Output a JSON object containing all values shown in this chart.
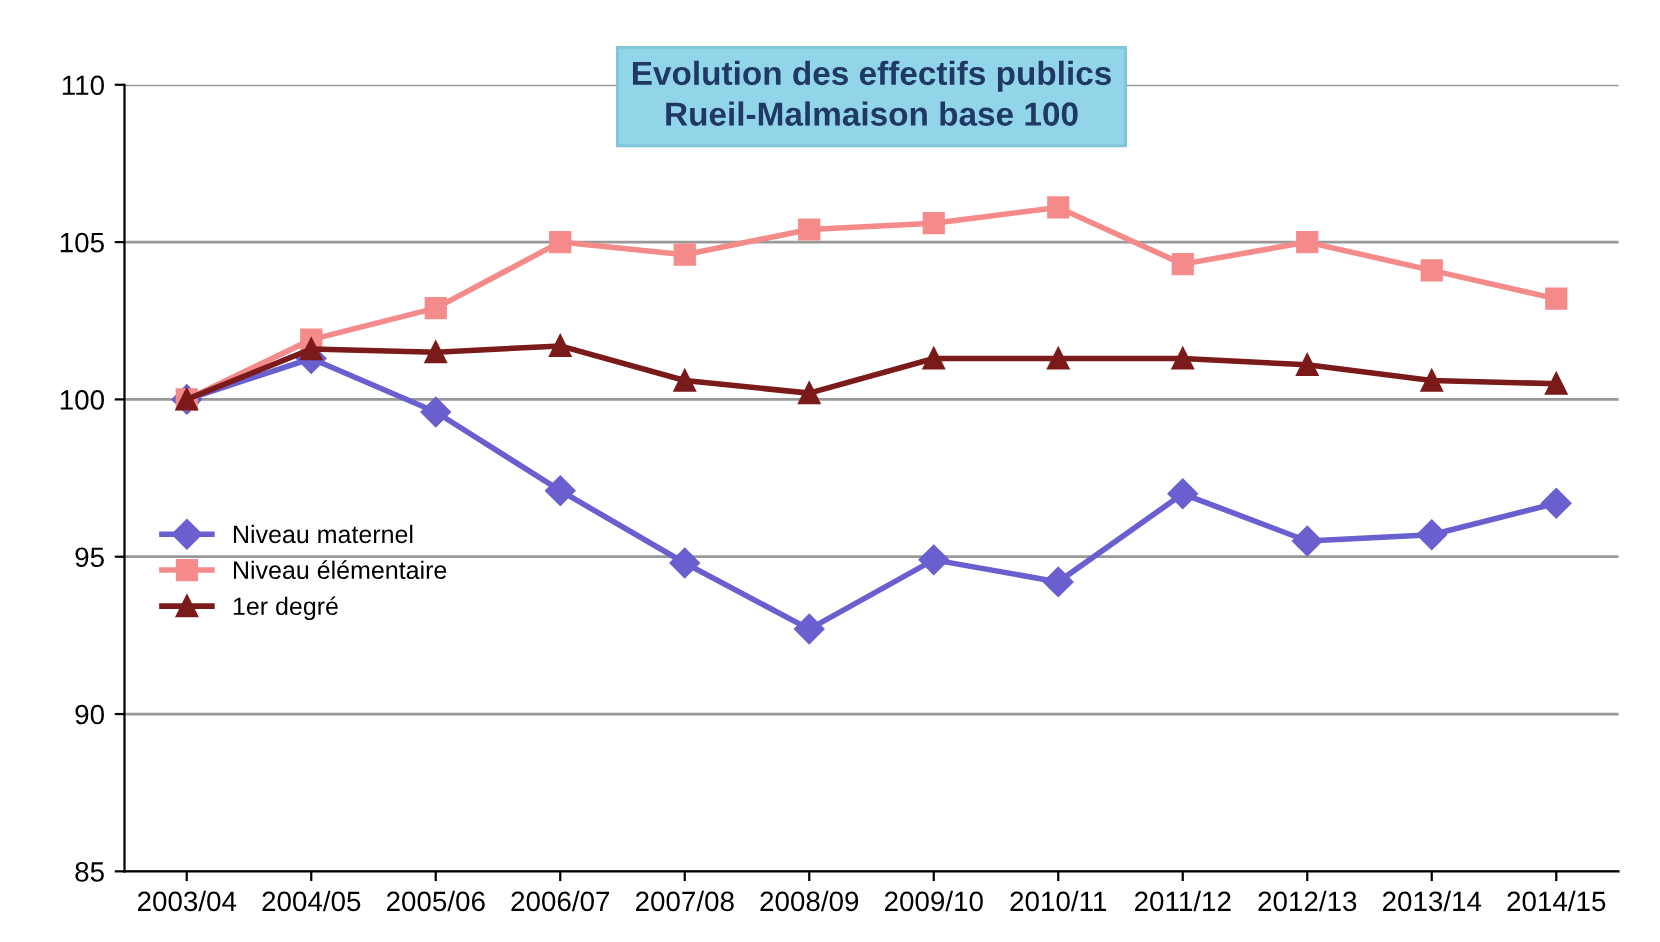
{
  "chart_data": {
    "type": "line",
    "title": "Evolution des effectifs publics\nRueil-Malmaison base 100",
    "categories": [
      "2003/04",
      "2004/05",
      "2005/06",
      "2006/07",
      "2007/08",
      "2008/09",
      "2009/10",
      "2010/11",
      "2011/12",
      "2012/13",
      "2013/14",
      "2014/15"
    ],
    "series": [
      {
        "name": "Niveau maternel",
        "color": "#6a5fcf",
        "marker": "diamond",
        "values": [
          100,
          101.3,
          99.6,
          97.1,
          94.8,
          92.7,
          94.9,
          94.2,
          97.0,
          95.5,
          95.7,
          96.7
        ]
      },
      {
        "name": "Niveau élémentaire",
        "color": "#f48a8a",
        "marker": "square",
        "values": [
          100,
          101.9,
          102.9,
          105.0,
          104.6,
          105.4,
          105.6,
          106.1,
          104.3,
          105.0,
          104.1,
          103.2
        ]
      },
      {
        "name": "1er degré",
        "color": "#7b1a1a",
        "marker": "triangle",
        "values": [
          100,
          101.6,
          101.5,
          101.7,
          100.6,
          100.2,
          101.3,
          101.3,
          101.3,
          101.1,
          100.6,
          100.5
        ]
      }
    ],
    "ylim": [
      85,
      110
    ],
    "yticks": [
      85,
      90,
      95,
      100,
      105,
      110
    ],
    "grid": "y",
    "legend": "left",
    "line_style": "solid"
  }
}
